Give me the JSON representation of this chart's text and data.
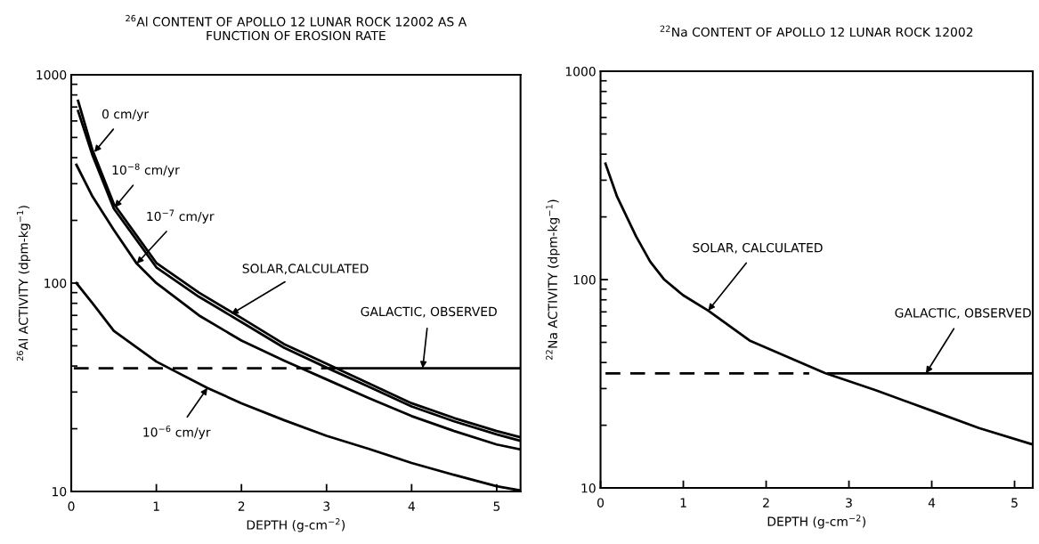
{
  "chart_data": [
    {
      "type": "line",
      "title": "$^{26}$Al CONTENT OF APOLLO 12 LUNAR ROCK 12002 AS A\nFUNCTION OF EROSION RATE",
      "xlabel": "DEPTH (g-cm$^{−2}$)",
      "ylabel": "$^{26}$Al ACTIVITY (dpm-kg$^{−1}$)",
      "log": "y",
      "grid": false,
      "legend": false,
      "marker": "none",
      "xlim": [
        0,
        5.28
      ],
      "xticks": [
        0,
        1,
        2,
        3,
        4,
        5
      ],
      "ylim": [
        10,
        1000
      ],
      "yticks": [
        10,
        100,
        1000
      ],
      "series": [
        {
          "color": "#000000",
          "x": [
            0.08,
            0.25,
            0.5,
            1,
            1.5,
            2,
            2.5,
            3,
            3.5,
            4,
            4.5,
            5,
            5.28
          ],
          "values": [
            750,
            434,
            240,
            125,
            90,
            68,
            51,
            41,
            33,
            26.5,
            22.5,
            19.5,
            18.2
          ]
        },
        {
          "color": "#000000",
          "x": [
            0.08,
            0.25,
            0.5,
            1,
            1.5,
            2,
            2.5,
            3,
            3.5,
            4,
            4.5,
            5,
            5.28
          ],
          "values": [
            670,
            410,
            228,
            119,
            86,
            65,
            49,
            39.3,
            31.8,
            25.6,
            21.7,
            18.8,
            17.5
          ]
        },
        {
          "color": "#000000",
          "x": [
            0.06,
            0.25,
            0.5,
            0.77,
            1,
            1.5,
            2,
            2.5,
            3,
            3.5,
            4,
            4.5,
            5,
            5.28
          ],
          "values": [
            370,
            260,
            180,
            124,
            100,
            70,
            53,
            42.5,
            34.5,
            28,
            23,
            19.5,
            16.8,
            15.9
          ]
        },
        {
          "color": "#000000",
          "x": [
            0.06,
            0.25,
            0.5,
            1,
            1.6,
            2,
            2.5,
            3,
            3.5,
            4,
            4.5,
            5,
            5.28
          ],
          "values": [
            100,
            80,
            59,
            42,
            31.4,
            26.5,
            22,
            18.5,
            16,
            13.7,
            12,
            10.6,
            10.1
          ]
        },
        {
          "color": "#000000",
          "line_style": "dashed",
          "x": [
            0.03,
            3.05
          ],
          "values": [
            39,
            39
          ]
        },
        {
          "color": "#000000",
          "line_style": "solid",
          "x": [
            3.05,
            5.28
          ],
          "values": [
            39,
            39
          ]
        }
      ],
      "annotations": [
        {
          "text": "0 cm/yr",
          "x": 0.27,
          "y": 425
        },
        {
          "text": "10$^{−8}$ cm/yr",
          "x": 0.51,
          "y": 231
        },
        {
          "text": "10$^{−7}$ cm/yr",
          "x": 0.77,
          "y": 124
        },
        {
          "text": "SOLAR,CALCULATED",
          "x": 1.88,
          "y": 71
        },
        {
          "text": "GALACTIC, OBSERVED",
          "x": 4.13,
          "y": 39
        },
        {
          "text": "10$^{−6}$ cm/yr",
          "x": 1.6,
          "y": 31.4
        }
      ]
    },
    {
      "type": "line",
      "title": "$^{22}$Na CONTENT OF APOLLO 12 LUNAR ROCK 12002",
      "xlabel": "DEPTH (g-cm$^{−2}$)",
      "ylabel": "$^{22}$Na ACTIVITY (dpm-kg$^{−1}$)",
      "log": "y",
      "grid": false,
      "legend": false,
      "marker": "none",
      "xlim": [
        0,
        5.22
      ],
      "xticks": [
        0,
        1,
        2,
        3,
        4,
        5
      ],
      "ylim": [
        10,
        1000
      ],
      "yticks": [
        10,
        100,
        1000
      ],
      "series": [
        {
          "color": "#000000",
          "x": [
            0.06,
            0.2,
            0.43,
            0.6,
            0.77,
            1,
            1.3,
            1.8,
            2.71,
            3.33,
            4.01,
            4.57,
            5.21
          ],
          "values": [
            360,
            250,
            161,
            122,
            100,
            84,
            71,
            51,
            35.6,
            29.4,
            23.4,
            19.4,
            16.2
          ]
        },
        {
          "color": "#000000",
          "line_style": "dashed",
          "x": [
            0.06,
            2.52
          ],
          "values": [
            35.5,
            35.5
          ]
        },
        {
          "color": "#000000",
          "line_style": "solid",
          "x": [
            2.75,
            5.22
          ],
          "values": [
            35.5,
            35.5
          ]
        }
      ],
      "annotations": [
        {
          "text": "SOLAR, CALCULATED",
          "x": 1.3,
          "y": 71
        },
        {
          "text": "GALACTIC, OBSERVED",
          "x": 3.93,
          "y": 35.5
        }
      ]
    }
  ]
}
